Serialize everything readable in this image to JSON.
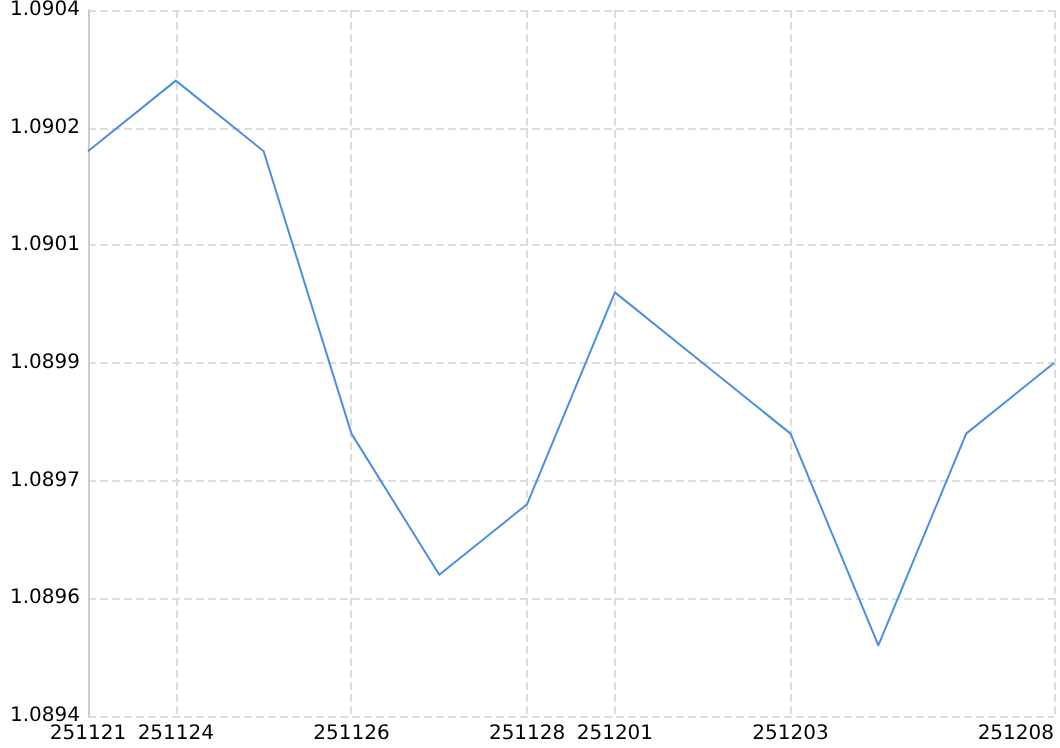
{
  "chart_data": {
    "type": "line",
    "categories": [
      "251121",
      "251124",
      null,
      "251126",
      null,
      "251128",
      "251201",
      null,
      "251203",
      null,
      null,
      "251208"
    ],
    "series": [
      {
        "color": "#4a8fe0",
        "values": [
          1.0902,
          1.0903,
          1.0902,
          1.0898,
          1.0896,
          1.0897,
          1.09,
          1.0899,
          1.0898,
          1.0895,
          1.0898,
          1.0899
        ]
      }
    ],
    "ylim": [
      1.0894,
      1.0904
    ],
    "yticks": [
      1.0894,
      {
        "value": 1.0895667,
        "label": "1.0896"
      },
      {
        "value": 1.0897333,
        "label": "1.0897"
      },
      1.0899,
      {
        "value": 1.0900667,
        "label": "1.0901"
      },
      {
        "value": 1.0902333,
        "label": "1.0902"
      },
      1.0904
    ],
    "grid": true,
    "marker": "none",
    "line_style": "solid"
  }
}
